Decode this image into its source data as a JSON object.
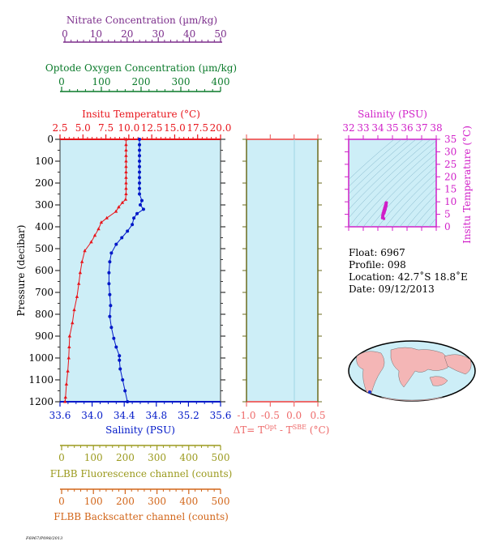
{
  "colors": {
    "nitrate": "#7b2d8b",
    "oxygen": "#0a7a2a",
    "temperature": "#e8141a",
    "salinity": "#0018c8",
    "fluorescence": "#9b9a1e",
    "backscatter": "#d2661a",
    "salinity_ts": "#d01fc8",
    "panel_bg": "#cdeef7",
    "land": "#f4b6b6"
  },
  "axes": {
    "nitrate": {
      "label": "Nitrate Concentration (µm/kg)",
      "ticks": [
        "0",
        "10",
        "20",
        "30",
        "40",
        "50"
      ]
    },
    "oxygen": {
      "label": "Optode Oxygen Concentration (µm/kg)",
      "ticks": [
        "0",
        "100",
        "200",
        "300",
        "400"
      ]
    },
    "temperature": {
      "label": "Insitu Temperature (°C)",
      "ticks": [
        "2.5",
        "5.0",
        "7.5",
        "10.0",
        "12.5",
        "15.0",
        "17.5",
        "20.0"
      ]
    },
    "pressure": {
      "label": "Pressure (decibar)",
      "ticks": [
        "0",
        "100",
        "200",
        "300",
        "400",
        "500",
        "600",
        "700",
        "800",
        "900",
        "1000",
        "1100",
        "1200"
      ]
    },
    "salinity": {
      "label": "Salinity (PSU)",
      "ticks": [
        "33.6",
        "34.0",
        "34.4",
        "34.8",
        "35.2",
        "35.6"
      ]
    },
    "dt": {
      "label_main": "ΔT= T",
      "sup1": "Opt",
      "label_mid": " - T",
      "sup2": "SBE",
      "label_unit": " (°C)",
      "ticks": [
        "-1.0",
        "-0.5",
        "0.0",
        "0.5"
      ]
    },
    "fluorescence": {
      "label": "FLBB Fluorescence channel (counts)",
      "ticks": [
        "0",
        "100",
        "200",
        "300",
        "400",
        "500"
      ]
    },
    "backscatter": {
      "label": "FLBB Backscatter channel (counts)",
      "ticks": [
        "0",
        "100",
        "200",
        "300",
        "400",
        "500"
      ]
    },
    "ts_salinity": {
      "label": "Salinity (PSU)",
      "ticks": [
        "32",
        "33",
        "34",
        "35",
        "36",
        "37",
        "38"
      ]
    },
    "ts_temperature": {
      "label": "Insitu Temperature (°C)",
      "ticks": [
        "0",
        "5",
        "10",
        "15",
        "20",
        "25",
        "30",
        "35"
      ]
    }
  },
  "info": {
    "float": "Float:  6967",
    "profile": "Profile:  098",
    "location": "Location:  42.7˚S  18.8˚E",
    "date": "Date:  09/12/2013"
  },
  "footer": "F6967/P098/2013",
  "chart_data": [
    {
      "type": "line",
      "name": "temperature_profile",
      "xlim": [
        2.5,
        20.0
      ],
      "ylim": [
        1200,
        0
      ],
      "points": [
        [
          9.7,
          0
        ],
        [
          9.7,
          25
        ],
        [
          9.7,
          50
        ],
        [
          9.7,
          75
        ],
        [
          9.7,
          100
        ],
        [
          9.7,
          125
        ],
        [
          9.7,
          150
        ],
        [
          9.7,
          175
        ],
        [
          9.7,
          200
        ],
        [
          9.7,
          225
        ],
        [
          9.7,
          250
        ],
        [
          9.65,
          275
        ],
        [
          9.3,
          290
        ],
        [
          8.9,
          310
        ],
        [
          8.6,
          330
        ],
        [
          7.6,
          360
        ],
        [
          7.0,
          380
        ],
        [
          6.7,
          410
        ],
        [
          6.3,
          440
        ],
        [
          5.9,
          470
        ],
        [
          5.2,
          510
        ],
        [
          4.9,
          560
        ],
        [
          4.7,
          610
        ],
        [
          4.55,
          660
        ],
        [
          4.35,
          720
        ],
        [
          4.05,
          780
        ],
        [
          3.85,
          840
        ],
        [
          3.55,
          900
        ],
        [
          3.5,
          950
        ],
        [
          3.45,
          1000
        ],
        [
          3.35,
          1060
        ],
        [
          3.2,
          1120
        ],
        [
          3.1,
          1180
        ],
        [
          3.05,
          1200
        ]
      ]
    },
    {
      "type": "line",
      "name": "salinity_profile",
      "xlim": [
        33.6,
        35.6
      ],
      "ylim": [
        1200,
        0
      ],
      "points": [
        [
          34.59,
          0
        ],
        [
          34.59,
          25
        ],
        [
          34.59,
          50
        ],
        [
          34.59,
          75
        ],
        [
          34.59,
          100
        ],
        [
          34.59,
          125
        ],
        [
          34.59,
          150
        ],
        [
          34.59,
          175
        ],
        [
          34.59,
          200
        ],
        [
          34.59,
          225
        ],
        [
          34.59,
          250
        ],
        [
          34.62,
          280
        ],
        [
          34.6,
          300
        ],
        [
          34.64,
          320
        ],
        [
          34.56,
          340
        ],
        [
          34.52,
          360
        ],
        [
          34.5,
          390
        ],
        [
          34.44,
          420
        ],
        [
          34.37,
          450
        ],
        [
          34.3,
          480
        ],
        [
          34.24,
          520
        ],
        [
          34.22,
          560
        ],
        [
          34.21,
          610
        ],
        [
          34.21,
          660
        ],
        [
          34.22,
          710
        ],
        [
          34.23,
          760
        ],
        [
          34.22,
          810
        ],
        [
          34.24,
          860
        ],
        [
          34.27,
          910
        ],
        [
          34.3,
          950
        ],
        [
          34.34,
          990
        ],
        [
          34.34,
          1010
        ],
        [
          34.35,
          1050
        ],
        [
          34.38,
          1100
        ],
        [
          34.41,
          1150
        ],
        [
          34.44,
          1200
        ]
      ]
    },
    {
      "type": "scatter",
      "name": "ts_diagram",
      "xlim": [
        32,
        38
      ],
      "ylim": [
        0,
        35
      ],
      "points": [
        [
          34.3,
          3.5
        ],
        [
          34.32,
          4.5
        ],
        [
          34.35,
          5.5
        ],
        [
          34.4,
          6.5
        ],
        [
          34.45,
          7.5
        ],
        [
          34.5,
          8.5
        ],
        [
          34.55,
          9.5
        ],
        [
          34.56,
          9.7
        ],
        [
          34.6,
          9.7
        ],
        [
          34.58,
          8.5
        ],
        [
          34.52,
          7.0
        ],
        [
          34.44,
          5.5
        ],
        [
          34.36,
          4.6
        ],
        [
          34.34,
          4.0
        ],
        [
          34.38,
          3.6
        ],
        [
          34.42,
          3.2
        ]
      ]
    }
  ]
}
